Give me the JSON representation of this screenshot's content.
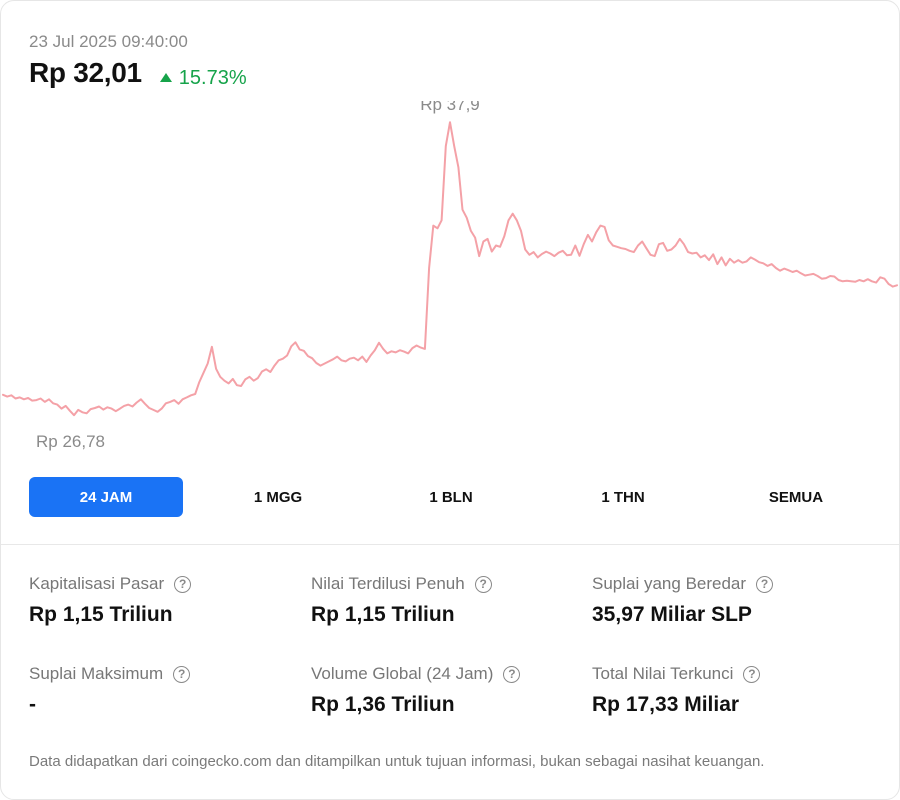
{
  "header": {
    "timestamp": "23 Jul 2025 09:40:00",
    "price": "Rp 32,01",
    "change": "15.73%",
    "change_color": "#16a34a"
  },
  "chart_data": {
    "type": "line",
    "series_color": "#f4a1a7",
    "ylim": [
      25.5,
      38.7
    ],
    "annotations": {
      "high": "Rp 37,9",
      "low": "Rp 26,78"
    },
    "values": [
      27.62,
      27.55,
      27.6,
      27.48,
      27.52,
      27.45,
      27.5,
      27.4,
      27.42,
      27.48,
      27.35,
      27.45,
      27.3,
      27.25,
      27.1,
      27.2,
      27.02,
      26.85,
      27.05,
      26.96,
      26.92,
      27.08,
      27.12,
      27.18,
      27.06,
      27.15,
      27.1,
      27.0,
      27.1,
      27.2,
      27.25,
      27.18,
      27.33,
      27.45,
      27.28,
      27.12,
      27.05,
      26.98,
      27.1,
      27.3,
      27.35,
      27.42,
      27.28,
      27.45,
      27.52,
      27.6,
      27.65,
      28.1,
      28.45,
      28.8,
      29.43,
      28.6,
      28.3,
      28.15,
      28.05,
      28.22,
      27.98,
      27.95,
      28.2,
      28.3,
      28.15,
      28.25,
      28.5,
      28.58,
      28.48,
      28.72,
      28.92,
      28.98,
      29.1,
      29.45,
      29.6,
      29.33,
      29.28,
      29.08,
      29.0,
      28.82,
      28.72,
      28.8,
      28.88,
      28.96,
      29.06,
      28.92,
      28.88,
      28.98,
      29.02,
      28.92,
      29.06,
      28.86,
      29.1,
      29.3,
      29.58,
      29.35,
      29.18,
      29.26,
      29.22,
      29.3,
      29.25,
      29.18,
      29.38,
      29.48,
      29.4,
      29.35,
      32.4,
      34.0,
      33.9,
      34.2,
      37.0,
      37.9,
      37.0,
      36.2,
      34.6,
      34.3,
      33.8,
      33.55,
      32.85,
      33.4,
      33.5,
      33.02,
      33.25,
      33.2,
      33.6,
      34.2,
      34.45,
      34.2,
      33.8,
      33.1,
      32.9,
      33.0,
      32.8,
      32.93,
      33.02,
      32.95,
      32.85,
      32.98,
      33.05,
      32.88,
      32.9,
      33.25,
      32.86,
      33.3,
      33.65,
      33.4,
      33.75,
      34.0,
      33.95,
      33.45,
      33.25,
      33.2,
      33.15,
      33.12,
      33.05,
      33.0,
      33.25,
      33.4,
      33.15,
      32.9,
      32.85,
      33.3,
      33.35,
      33.05,
      33.1,
      33.25,
      33.5,
      33.3,
      33.0,
      32.95,
      32.98,
      32.8,
      32.88,
      32.7,
      32.92,
      32.55,
      32.8,
      32.5,
      32.75,
      32.6,
      32.7,
      32.6,
      32.65,
      32.8,
      32.72,
      32.62,
      32.58,
      32.48,
      32.55,
      32.4,
      32.3,
      32.38,
      32.32,
      32.25,
      32.3,
      32.2,
      32.12,
      32.15,
      32.18,
      32.1,
      32.0,
      32.02,
      32.1,
      32.08,
      31.95,
      31.9,
      31.92,
      31.9,
      31.88,
      31.95,
      31.9,
      31.98,
      31.9,
      31.85,
      32.05,
      32.0,
      31.8,
      31.7,
      31.75
    ]
  },
  "tabs": [
    {
      "label": "24 JAM",
      "active": true
    },
    {
      "label": "1 MGG",
      "active": false
    },
    {
      "label": "1 BLN",
      "active": false
    },
    {
      "label": "1 THN",
      "active": false
    },
    {
      "label": "SEMUA",
      "active": false
    }
  ],
  "stats": [
    {
      "label": "Kapitalisasi Pasar",
      "value": "Rp 1,15 Triliun"
    },
    {
      "label": "Nilai Terdilusi Penuh",
      "value": "Rp 1,15 Triliun"
    },
    {
      "label": "Suplai yang Beredar",
      "value": "35,97 Miliar SLP"
    },
    {
      "label": "Suplai Maksimum",
      "value": "-"
    },
    {
      "label": "Volume Global (24 Jam)",
      "value": "Rp 1,36 Triliun"
    },
    {
      "label": "Total Nilai Terkunci",
      "value": "Rp 17,33 Miliar"
    }
  ],
  "footnote": "Data didapatkan dari coingecko.com dan ditampilkan untuk tujuan informasi, bukan sebagai nasihat keuangan.",
  "icons": {
    "help": "?"
  }
}
